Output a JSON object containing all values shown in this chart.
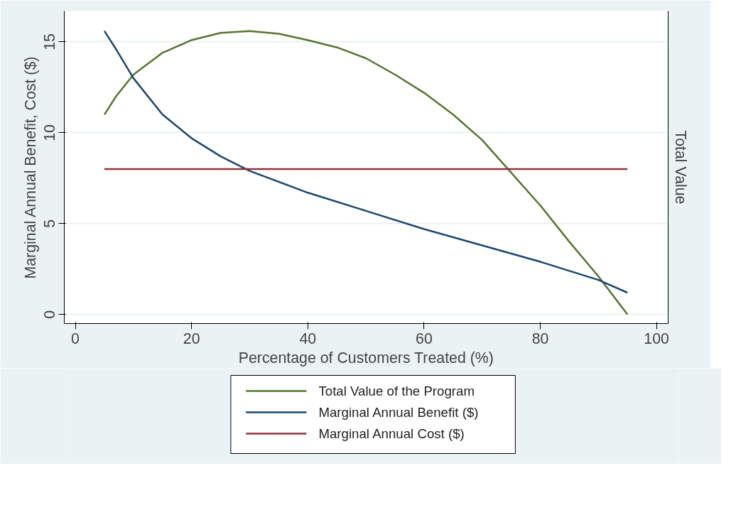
{
  "chart_data": {
    "type": "line",
    "xlabel": "Percentage of Customers Treated (%)",
    "ylabel": "Marginal Annual Benefit, Cost ($)",
    "y2label": "Total Value",
    "xlim": [
      -1.9,
      102
    ],
    "xticks": [
      0,
      20,
      40,
      60,
      80,
      100
    ],
    "ylim": [
      -0.5,
      16.7
    ],
    "yticks": [
      0,
      5,
      10,
      15
    ],
    "grid": "y",
    "legend": "bottom",
    "line_style": "solid",
    "marker": "none",
    "series": [
      {
        "name": "Total Value of the Program",
        "color": "#55752f",
        "x": [
          5,
          7,
          10,
          15,
          20,
          25,
          30,
          35,
          40,
          45,
          50,
          55,
          60,
          65,
          70,
          75,
          80,
          85,
          90,
          95
        ],
        "values": [
          11,
          12,
          13.2,
          14.4,
          15.1,
          15.5,
          15.6,
          15.45,
          15.1,
          14.7,
          14.1,
          13.2,
          12.2,
          11,
          9.6,
          7.8,
          6,
          4,
          2.1,
          0
        ]
      },
      {
        "name": "Marginal Annual Benefit ($)",
        "color": "#1a476f",
        "x": [
          5,
          7,
          10,
          15,
          20,
          25,
          30,
          40,
          50,
          60,
          70,
          80,
          90,
          95
        ],
        "values": [
          15.6,
          14.6,
          13,
          11,
          9.7,
          8.7,
          7.9,
          6.7,
          5.7,
          4.7,
          3.8,
          2.9,
          1.9,
          1.2
        ]
      },
      {
        "name": "Marginal Annual Cost ($)",
        "color": "#90353b",
        "x": [
          5,
          95
        ],
        "values": [
          8,
          8
        ]
      }
    ]
  }
}
